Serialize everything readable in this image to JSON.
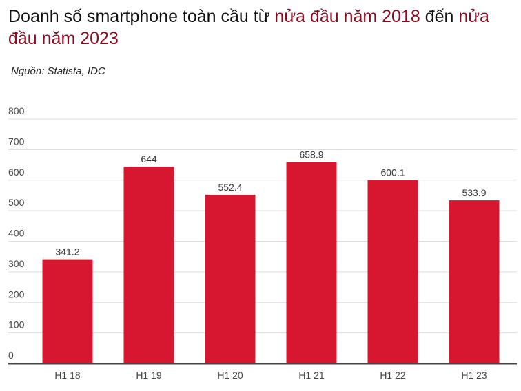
{
  "title_parts": [
    "Doanh số smartphone toàn cầu từ ",
    "nửa đầu năm 2018",
    " đến ",
    "nửa đầu năm 2023"
  ],
  "source": "Nguồn: Statista, IDC",
  "chart_data": {
    "type": "bar",
    "title": "Doanh số smartphone toàn cầu từ nửa đầu năm 2018 đến nửa đầu năm 2023",
    "categories": [
      "H1 18",
      "H1 19",
      "H1 20",
      "H1 21",
      "H1 22",
      "H1 23"
    ],
    "values": [
      341.2,
      644,
      552.4,
      658.9,
      600.1,
      533.9
    ],
    "data_labels": [
      "341.2",
      "644",
      "552.4",
      "658.9",
      "600.1",
      "533.9"
    ],
    "yticks": [
      0,
      100,
      200,
      300,
      400,
      500,
      600,
      700,
      800
    ],
    "ylim": [
      0,
      800
    ],
    "grid": true,
    "xlabel": "",
    "ylabel": "",
    "colors": {
      "bar": "#d71730",
      "title_highlight": "#8b0a1f"
    }
  }
}
